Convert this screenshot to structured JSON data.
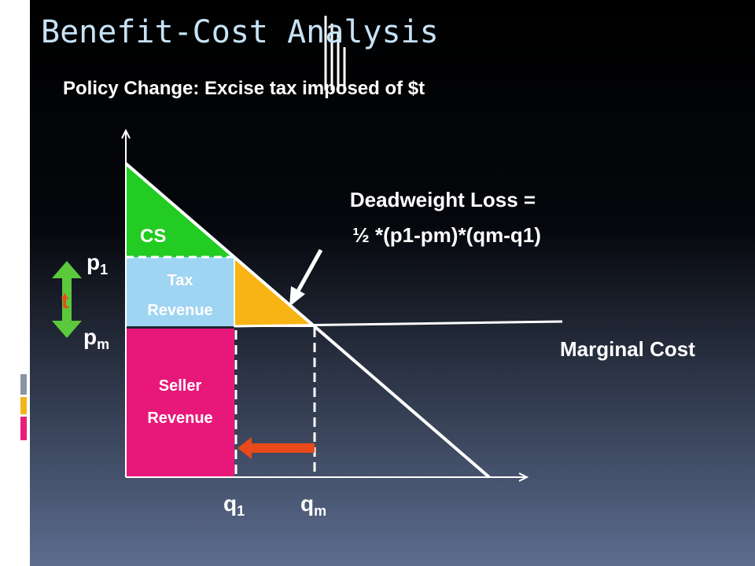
{
  "slide": {
    "title": "Benefit-Cost Analysis",
    "subtitle": "Policy Change: Excise tax imposed of $t",
    "regions": {
      "consumer_surplus": "CS",
      "tax_revenue": [
        "Tax",
        "Revenue"
      ],
      "seller_revenue": [
        "Seller",
        "Revenue"
      ]
    },
    "deadweight_loss": [
      "Deadweight Loss =",
      "½ *(p1-pm)*(qm-q1)"
    ],
    "tax_label": "t",
    "marginal_cost": "Marginal Cost",
    "price_labels": [
      {
        "base": "p",
        "sub": "1"
      },
      {
        "base": "p",
        "sub": "m"
      }
    ],
    "quantity_labels": [
      {
        "base": "q",
        "sub": "1"
      },
      {
        "base": "q",
        "sub": "m"
      }
    ]
  }
}
